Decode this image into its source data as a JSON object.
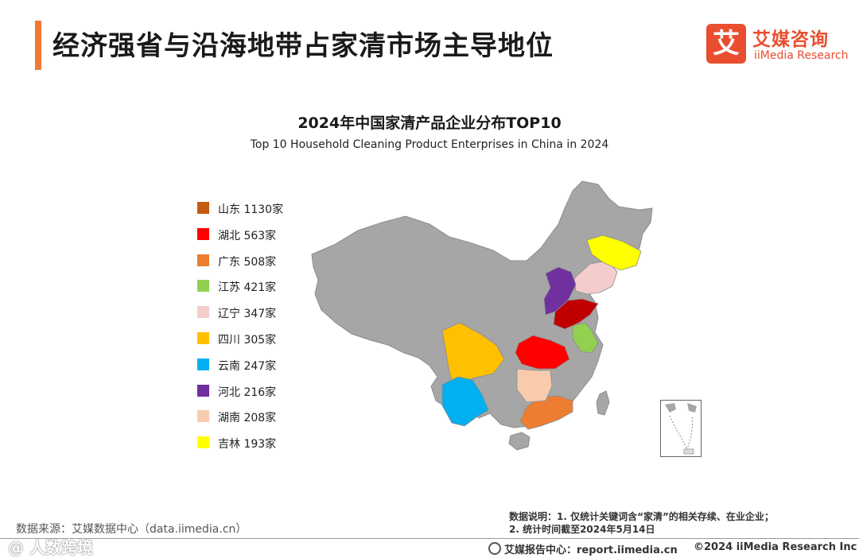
{
  "header": {
    "title": "经济强省与沿海地带占家清市场主导地位",
    "logo_mark": "艾",
    "logo_cn": "艾媒咨询",
    "logo_en": "iiMedia Research"
  },
  "chart_data": {
    "type": "map",
    "title": "2024年中国家清产品企业分布TOP10",
    "subtitle": "Top 10 Household Cleaning Product Enterprises in China in 2024",
    "legend_position": "left",
    "unit": "家",
    "categories": [
      "山东",
      "湖北",
      "广东",
      "江苏",
      "辽宁",
      "四川",
      "云南",
      "河北",
      "湖南",
      "吉林"
    ],
    "values": [
      1130,
      563,
      508,
      421,
      347,
      305,
      247,
      216,
      208,
      193
    ],
    "labels": [
      "山东 1130家",
      "湖北 563家",
      "广东 508家",
      "江苏 421家",
      "辽宁 347家",
      "四川 305家",
      "云南 247家",
      "河北 216家",
      "湖南 208家",
      "吉林 193家"
    ],
    "colors": [
      "#c55a11",
      "#ff0000",
      "#ed7d31",
      "#92d050",
      "#f4cccc",
      "#ffc000",
      "#00b0f0",
      "#7030a0",
      "#f8cbad",
      "#ffff00"
    ],
    "highlight_colors": {
      "山东": "#c00000"
    },
    "base_color": "#a6a6a6"
  },
  "footer": {
    "source": "数据来源：艾媒数据中心（data.iimedia.cn）",
    "note_line1": "数据说明：1. 仅统计关键词含“家清”的相关存续、在业企业；",
    "note_line2": "2. 统计时间截至2024年5月14日",
    "report_center": "艾媒报告中心：report.iimedia.cn",
    "copyright": "©2024  iiMedia Research  Inc",
    "watermark": "@ 人数跨境"
  }
}
